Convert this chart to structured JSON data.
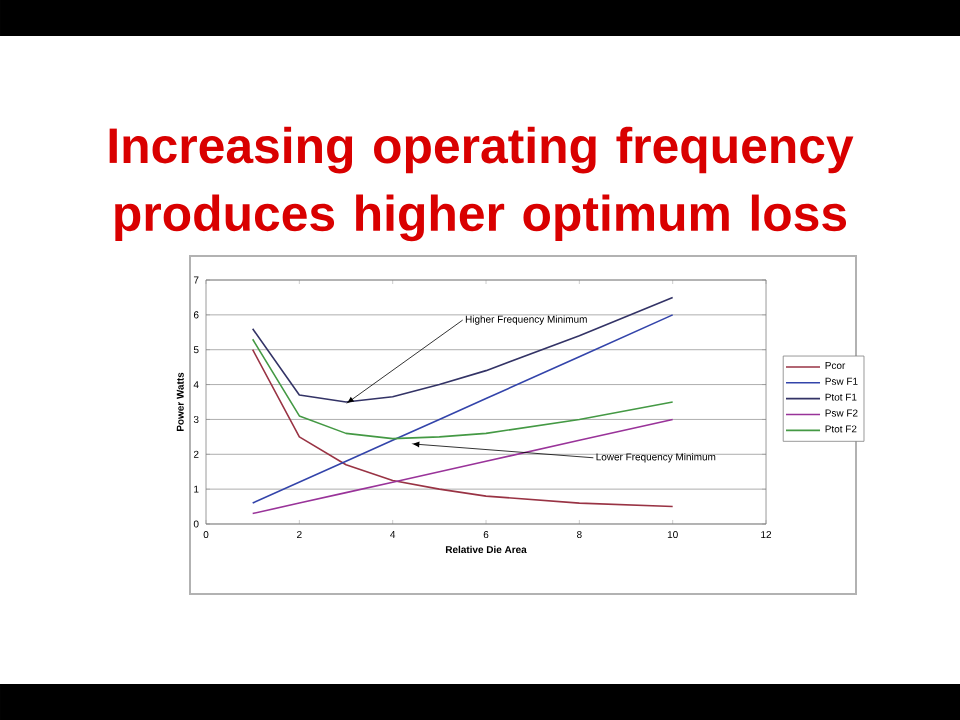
{
  "chart_data": {
    "type": "line",
    "title": "Increasing operating frequency produces higher optimum loss",
    "xlabel": "Relative Die Area",
    "ylabel": "Power Watts",
    "x": [
      1,
      2,
      3,
      4,
      5,
      6,
      8,
      10
    ],
    "series": [
      {
        "name": "Pcor",
        "color": "#993344",
        "values": [
          5,
          2.5,
          1.7,
          1.25,
          1.0,
          0.8,
          0.6,
          0.5
        ]
      },
      {
        "name": "Psw F1",
        "color": "#3344aa",
        "values": [
          0.6,
          1.2,
          1.8,
          2.4,
          3.0,
          3.6,
          4.8,
          6.0
        ]
      },
      {
        "name": "Ptot F1",
        "color": "#333366",
        "values": [
          5.6,
          3.7,
          3.5,
          3.65,
          4.0,
          4.4,
          5.4,
          6.5
        ]
      },
      {
        "name": "Psw F2",
        "color": "#993399",
        "values": [
          0.3,
          0.6,
          0.9,
          1.2,
          1.5,
          1.8,
          2.4,
          3.0
        ]
      },
      {
        "name": "Ptot F2",
        "color": "#449944",
        "values": [
          5.3,
          3.1,
          2.6,
          2.45,
          2.5,
          2.6,
          3.0,
          3.5
        ]
      }
    ],
    "annotations": [
      {
        "text": "Higher Frequency Minimum",
        "x": 3,
        "y": 3.45
      },
      {
        "text": "Lower Frequency Minimum",
        "x": 4.4,
        "y": 2.3
      }
    ],
    "xlim": [
      0,
      12
    ],
    "ylim": [
      0,
      7
    ],
    "xticks": [
      0,
      2,
      4,
      6,
      8,
      10,
      12
    ],
    "yticks": [
      0,
      1,
      2,
      3,
      4,
      5,
      6,
      7
    ],
    "grid": "y",
    "legend": "right",
    "marker": "none",
    "line_style": "solid"
  }
}
